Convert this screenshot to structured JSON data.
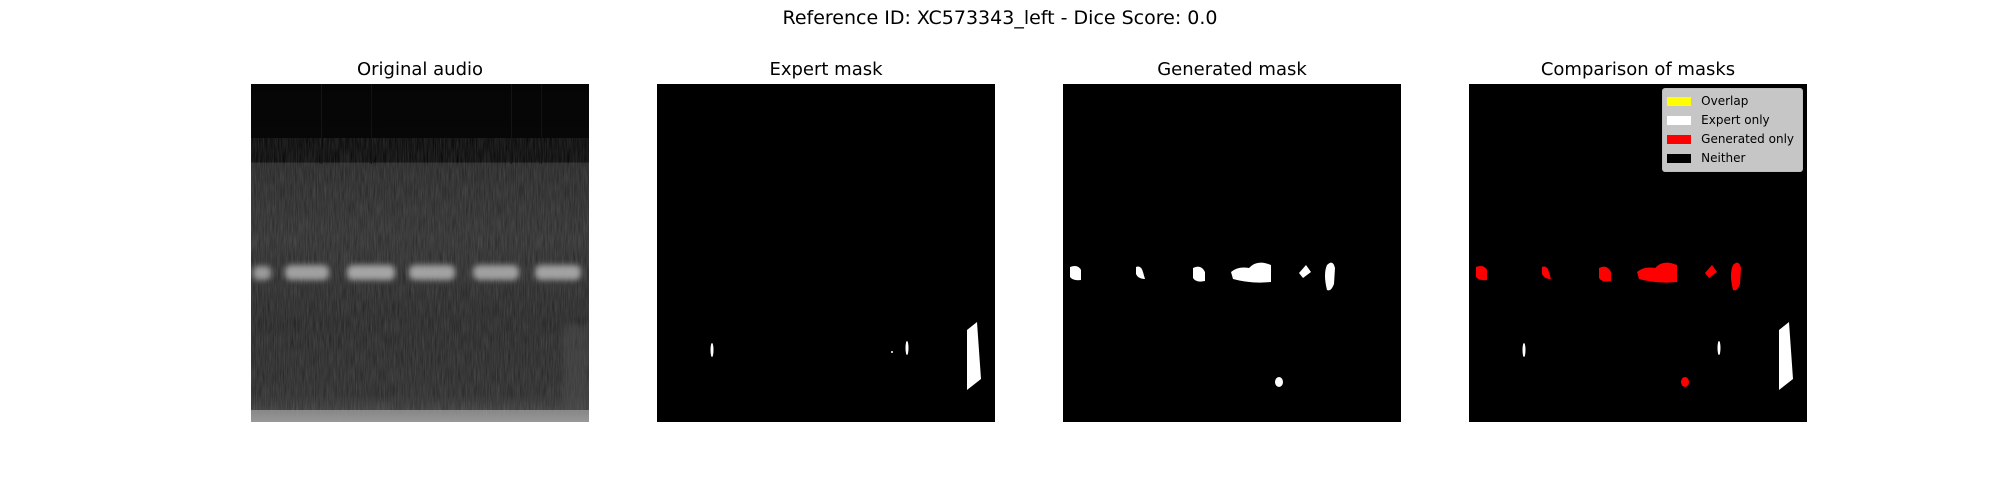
{
  "figure": {
    "title": "Reference ID: XC573343_left - Dice Score: 0.0"
  },
  "panels": {
    "original": {
      "title": "Original audio"
    },
    "expert": {
      "title": "Expert mask"
    },
    "generated": {
      "title": "Generated mask"
    },
    "comparison": {
      "title": "Comparison of masks",
      "legend": [
        {
          "label": "Overlap",
          "color": "#ffff00"
        },
        {
          "label": "Expert only",
          "color": "#ffffff"
        },
        {
          "label": "Generated only",
          "color": "#ff0000"
        },
        {
          "label": "Neither",
          "color": "#000000"
        }
      ]
    }
  },
  "colors": {
    "mask_fill": "#ffffff",
    "generated_only": "#ff0000",
    "background": "#000000"
  }
}
